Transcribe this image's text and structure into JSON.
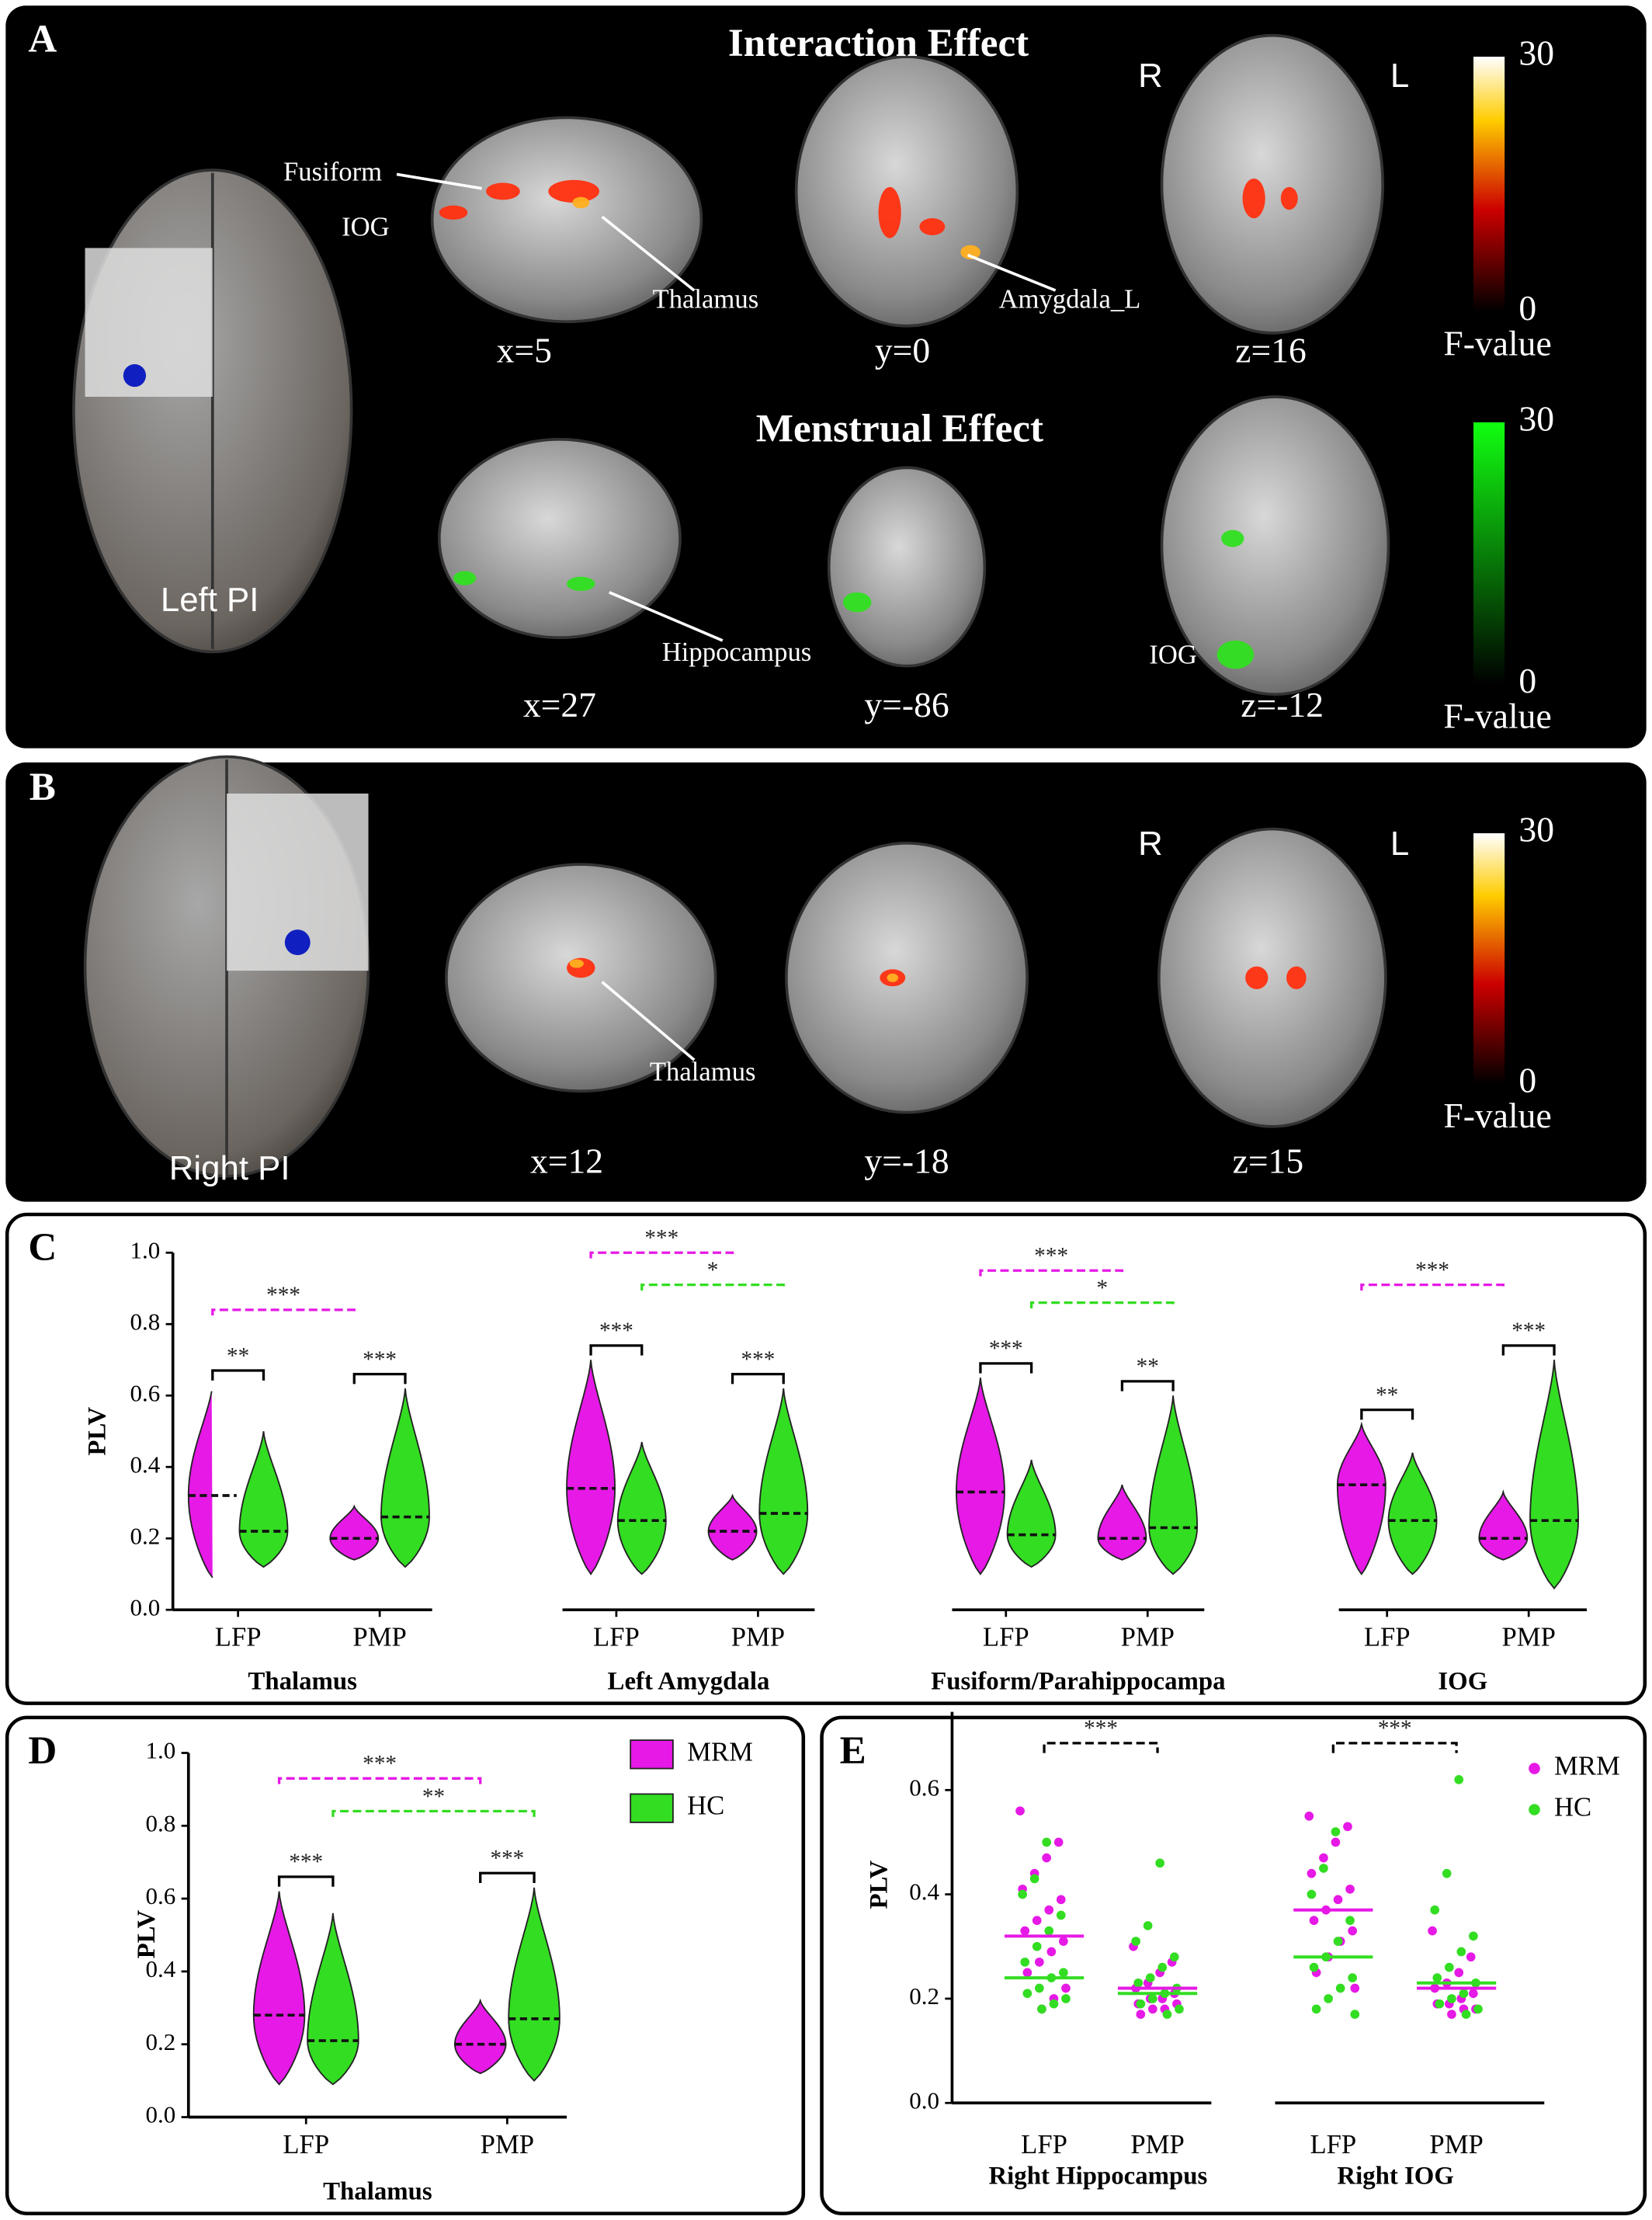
{
  "panels": {
    "A": {
      "label": "A",
      "interaction_title": "Interaction Effect",
      "menstrual_title": "Menstrual Effect",
      "seed": "Left PI",
      "hemisphere_labels": [
        "R",
        "L"
      ],
      "annotations": [
        "Fusiform",
        "IOG",
        "Thalamus",
        "Amygdala_L",
        "Hippocampus",
        "IOG"
      ],
      "slices": [
        "x=5",
        "y=0",
        "z=16",
        "x=27",
        "y=-86",
        "z=-12"
      ],
      "colorbars": [
        {
          "ticks": [
            0,
            30
          ],
          "label": "F-value"
        },
        {
          "ticks": [
            0,
            30
          ],
          "label": "F-value"
        }
      ]
    },
    "B": {
      "label": "B",
      "seed": "Right PI",
      "hemisphere_labels": [
        "R",
        "L"
      ],
      "annotations": [
        "Thalamus"
      ],
      "slices": [
        "x=12",
        "y=-18",
        "z=15"
      ],
      "colorbars": [
        {
          "ticks": [
            0,
            30
          ],
          "label": "F-value"
        }
      ]
    },
    "C": {
      "label": "C"
    },
    "D": {
      "label": "D"
    },
    "E": {
      "label": "E"
    }
  },
  "chart_data": [
    {
      "type": "violin",
      "title": "Thalamus",
      "ylabel": "PLV",
      "categories": [
        "LFP",
        "PMP"
      ],
      "ylim": [
        0,
        1
      ],
      "yticks": [
        {
          "value": 0,
          "label": "0.0"
        },
        {
          "value": 0.2,
          "label": "0.2"
        },
        {
          "value": 0.4,
          "label": "0.4"
        },
        {
          "value": 0.6,
          "label": "0.6"
        },
        {
          "value": 0.8,
          "label": "0.8"
        },
        {
          "value": 1,
          "label": "1.0"
        }
      ],
      "series": [
        {
          "color": "#e619e6",
          "median": [
            0.32,
            0.2
          ],
          "min": [
            0.09,
            0.14
          ],
          "max": [
            0.63,
            0.29
          ]
        },
        {
          "color": "#33dd22",
          "median": [
            0.22,
            0.26
          ],
          "min": [
            0.12,
            0.12
          ],
          "max": [
            0.5,
            0.62
          ]
        }
      ],
      "comparisons": [
        {
          "label": "***",
          "color": "#e619e6",
          "pair": [
            0,
            2
          ]
        },
        {
          "label": "**",
          "color": "#000000",
          "pair": [
            0,
            1
          ]
        },
        {
          "label": "***",
          "color": "#000000",
          "pair": [
            2,
            3
          ]
        }
      ]
    },
    {
      "type": "violin",
      "title": "Left Amygdala",
      "categories": [
        "LFP",
        "PMP"
      ],
      "ylim": [
        0,
        1
      ],
      "series": [
        {
          "color": "#e619e6",
          "median": [
            0.34,
            0.22
          ],
          "min": [
            0.1,
            0.14
          ],
          "max": [
            0.7,
            0.32
          ]
        },
        {
          "color": "#33dd22",
          "median": [
            0.25,
            0.27
          ],
          "min": [
            0.1,
            0.1
          ],
          "max": [
            0.47,
            0.62
          ]
        }
      ],
      "comparisons": [
        {
          "label": "***",
          "color": "#e619e6",
          "pair": [
            0,
            2
          ]
        },
        {
          "label": "*",
          "color": "#33dd22",
          "pair": [
            1,
            3
          ]
        },
        {
          "label": "***",
          "color": "#000000",
          "pair": [
            0,
            1
          ]
        },
        {
          "label": "***",
          "color": "#000000",
          "pair": [
            2,
            3
          ]
        }
      ]
    },
    {
      "type": "violin",
      "title": "Fusiform/Parahippocampa",
      "categories": [
        "LFP",
        "PMP"
      ],
      "ylim": [
        0,
        1
      ],
      "series": [
        {
          "color": "#e619e6",
          "median": [
            0.33,
            0.2
          ],
          "min": [
            0.1,
            0.14
          ],
          "max": [
            0.65,
            0.35
          ]
        },
        {
          "color": "#33dd22",
          "median": [
            0.21,
            0.23
          ],
          "min": [
            0.12,
            0.1
          ],
          "max": [
            0.42,
            0.6
          ]
        }
      ],
      "comparisons": [
        {
          "label": "***",
          "color": "#e619e6",
          "pair": [
            0,
            2
          ]
        },
        {
          "label": "*",
          "color": "#33dd22",
          "pair": [
            1,
            3
          ]
        },
        {
          "label": "***",
          "color": "#000000",
          "pair": [
            0,
            1
          ]
        },
        {
          "label": "**",
          "color": "#000000",
          "pair": [
            2,
            3
          ]
        }
      ]
    },
    {
      "type": "violin",
      "title": "IOG",
      "categories": [
        "LFP",
        "PMP"
      ],
      "ylim": [
        0,
        1
      ],
      "series": [
        {
          "color": "#e619e6",
          "median": [
            0.35,
            0.2
          ],
          "min": [
            0.1,
            0.14
          ],
          "max": [
            0.52,
            0.33
          ]
        },
        {
          "color": "#33dd22",
          "median": [
            0.25,
            0.25
          ],
          "min": [
            0.1,
            0.06
          ],
          "max": [
            0.44,
            0.7
          ]
        }
      ],
      "comparisons": [
        {
          "label": "***",
          "color": "#e619e6",
          "pair": [
            0,
            2
          ]
        },
        {
          "label": "**",
          "color": "#000000",
          "pair": [
            0,
            1
          ]
        },
        {
          "label": "***",
          "color": "#000000",
          "pair": [
            2,
            3
          ]
        }
      ]
    },
    {
      "type": "violin",
      "title": "Thalamus",
      "ylabel": "PLV",
      "categories": [
        "LFP",
        "PMP"
      ],
      "ylim": [
        0,
        1
      ],
      "legend": "upper right",
      "yticks": [
        {
          "value": 0,
          "label": "0.0"
        },
        {
          "value": 0.2,
          "label": "0.2"
        },
        {
          "value": 0.4,
          "label": "0.4"
        },
        {
          "value": 0.6,
          "label": "0.6"
        },
        {
          "value": 0.8,
          "label": "0.8"
        },
        {
          "value": 1,
          "label": "1.0"
        }
      ],
      "series": [
        {
          "name": "MRM",
          "color": "#e619e6",
          "median": [
            0.28,
            0.2
          ],
          "min": [
            0.09,
            0.12
          ],
          "max": [
            0.62,
            0.32
          ]
        },
        {
          "name": "HC",
          "color": "#33dd22",
          "median": [
            0.21,
            0.27
          ],
          "min": [
            0.09,
            0.1
          ],
          "max": [
            0.56,
            0.63
          ]
        }
      ],
      "comparisons": [
        {
          "label": "***",
          "color": "#e619e6",
          "pair": [
            0,
            2
          ]
        },
        {
          "label": "**",
          "color": "#33dd22",
          "pair": [
            1,
            3
          ]
        },
        {
          "label": "***",
          "color": "#000000",
          "pair": [
            0,
            1
          ]
        },
        {
          "label": "***",
          "color": "#000000",
          "pair": [
            2,
            3
          ]
        }
      ]
    },
    {
      "type": "dot",
      "ylabel": "PLV",
      "categories": [
        "LFP",
        "PMP",
        "LFP",
        "PMP"
      ],
      "group_titles": [
        "Right Hippocampus",
        "Right IOG"
      ],
      "ylim": [
        0,
        0.75
      ],
      "legend": "upper right",
      "yticks": [
        {
          "value": 0,
          "label": "0.0"
        },
        {
          "value": 0.2,
          "label": "0.2"
        },
        {
          "value": 0.4,
          "label": "0.4"
        },
        {
          "value": 0.6,
          "label": "0.6"
        }
      ],
      "series": [
        {
          "name": "MRM",
          "color": "#e619e6",
          "means": [
            0.32,
            0.22,
            0.37,
            0.22
          ],
          "values": [
            [
              0.56,
              0.5,
              0.47,
              0.44,
              0.41,
              0.39,
              0.37,
              0.35,
              0.33,
              0.31,
              0.29,
              0.27,
              0.25,
              0.22,
              0.2,
              0.18
            ],
            [
              0.3,
              0.27,
              0.25,
              0.23,
              0.22,
              0.21,
              0.2,
              0.2,
              0.19,
              0.19,
              0.18,
              0.18,
              0.17
            ],
            [
              0.55,
              0.53,
              0.5,
              0.47,
              0.44,
              0.41,
              0.39,
              0.37,
              0.35,
              0.33,
              0.31,
              0.28,
              0.25,
              0.22
            ],
            [
              0.33,
              0.28,
              0.25,
              0.23,
              0.22,
              0.21,
              0.2,
              0.19,
              0.19,
              0.18,
              0.18,
              0.17
            ]
          ]
        },
        {
          "name": "HC",
          "color": "#33dd22",
          "means": [
            0.24,
            0.21,
            0.28,
            0.23
          ],
          "values": [
            [
              0.5,
              0.43,
              0.4,
              0.36,
              0.33,
              0.3,
              0.27,
              0.25,
              0.24,
              0.22,
              0.21,
              0.2,
              0.19,
              0.18
            ],
            [
              0.46,
              0.34,
              0.31,
              0.28,
              0.26,
              0.24,
              0.23,
              0.22,
              0.21,
              0.2,
              0.19,
              0.18,
              0.17
            ],
            [
              0.52,
              0.45,
              0.4,
              0.35,
              0.31,
              0.28,
              0.26,
              0.24,
              0.22,
              0.2,
              0.18,
              0.17
            ],
            [
              0.62,
              0.44,
              0.37,
              0.32,
              0.29,
              0.26,
              0.24,
              0.23,
              0.21,
              0.2,
              0.19,
              0.18,
              0.17
            ]
          ]
        }
      ],
      "comparisons": [
        {
          "label": "***",
          "color": "#000000",
          "pair": [
            0,
            1
          ]
        },
        {
          "label": "***",
          "color": "#000000",
          "pair": [
            2,
            3
          ]
        }
      ]
    }
  ]
}
